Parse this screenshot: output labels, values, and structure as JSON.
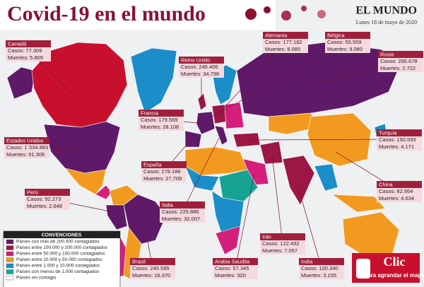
{
  "header": {
    "title": "Covid-19 en el mundo",
    "brand": "EL MUNDO",
    "date": "Lunes 18 de mayo de 2020"
  },
  "countries": [
    {
      "name": "Canadá",
      "cases": "Casos: 77.309",
      "deaths": "Muertes: 5.805"
    },
    {
      "name": "Reino Unido",
      "cases": "Casos: 246.406",
      "deaths": "Muertes: 34.796"
    },
    {
      "name": "Alemania",
      "cases": "Casos: 177.182",
      "deaths": "Muertes: 8.085"
    },
    {
      "name": "Bélgica",
      "cases": "Casos: 55.559",
      "deaths": "Muertes: 9.080"
    },
    {
      "name": "Rusia",
      "cases": "Casos: 290.678",
      "deaths": "Muertes: 2.722"
    },
    {
      "name": "Francia",
      "cases": "Casos: 179.569",
      "deaths": "Muertes: 28.108"
    },
    {
      "name": "Estados Unidos",
      "cases": "Casos: 1´534.883",
      "deaths": "Muertes: 91.306"
    },
    {
      "name": "Turquía",
      "cases": "Casos: 150.593",
      "deaths": "Muertes: 4.171"
    },
    {
      "name": "España",
      "cases": "Casos: 278.188",
      "deaths": "Muertes: 27.709"
    },
    {
      "name": "Perú",
      "cases": "Casos: 92.273",
      "deaths": "Muertes: 2.648"
    },
    {
      "name": "China",
      "cases": "Casos: 82.954",
      "deaths": "Muertes: 4.634"
    },
    {
      "name": "Italia",
      "cases": "Casos: 225.886",
      "deaths": "Muertes: 32.007"
    },
    {
      "name": "Irán",
      "cases": "Casos: 122.492",
      "deaths": "Muertes: 7.057"
    },
    {
      "name": "Brasil",
      "cases": "Casos: 245.595",
      "deaths": "Muertes: 16.370"
    },
    {
      "name": "Arabia Saudita",
      "cases": "Casos: 57.345",
      "deaths": "Muertes: 320"
    },
    {
      "name": "India",
      "cases": "Casos: 100.340",
      "deaths": "Muertes: 3.155"
    }
  ],
  "legend": {
    "title": "CONVENCIONES",
    "items": [
      {
        "label": "Países con más de 200.000 contagiados",
        "color": "#5e1a68"
      },
      {
        "label": "Países entre 100.000 y 200.000 contagiados",
        "color": "#9c1745"
      },
      {
        "label": "Países entre 50.000 y 100.000 contagiados",
        "color": "#d4207a"
      },
      {
        "label": "Países entre 10.000 y 50.000 contagiados",
        "color": "#f29a1f"
      },
      {
        "label": "Países entre 1.000 y 10.000 contagiados",
        "color": "#1b8dc8"
      },
      {
        "label": "Países con menos de 1.000 contagiados",
        "color": "#17a393"
      },
      {
        "label": "Países sin contagio",
        "color": "#ffffff"
      }
    ]
  },
  "button": {
    "title": "Clic",
    "subtitle": "para agrandar el mapa"
  }
}
